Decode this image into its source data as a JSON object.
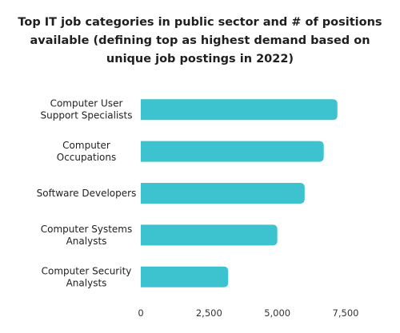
{
  "title_lines": [
    "Top IT job categories in public sector and # of positions",
    "available (defining top as highest demand based on",
    "unique job postings in 2022)"
  ],
  "chart_data": {
    "type": "bar",
    "orientation": "horizontal",
    "title": "Top IT job categories in public sector and # of positions available (defining top as highest demand based on unique job postings in 2022)",
    "categories": [
      "Computer User Support Specialists",
      "Computer Occupations",
      "Software Developers",
      "Computer Systems Analysts",
      "Computer Security Analysts"
    ],
    "category_label_lines": [
      [
        "Computer User",
        "Support Specialists"
      ],
      [
        "Computer",
        "Occupations"
      ],
      [
        "Software Developers"
      ],
      [
        "Computer Systems",
        "Analysts"
      ],
      [
        "Computer Security",
        "Analysts"
      ]
    ],
    "values": [
      7200,
      6700,
      6000,
      5000,
      3200
    ],
    "xlim": [
      0,
      7500
    ],
    "xticks": [
      0,
      2500,
      5000,
      7500
    ],
    "xtick_labels": [
      "0",
      "2,500",
      "5,000",
      "7,500"
    ],
    "grid": false,
    "legend": false,
    "bar_color": "#3cc3cf"
  }
}
